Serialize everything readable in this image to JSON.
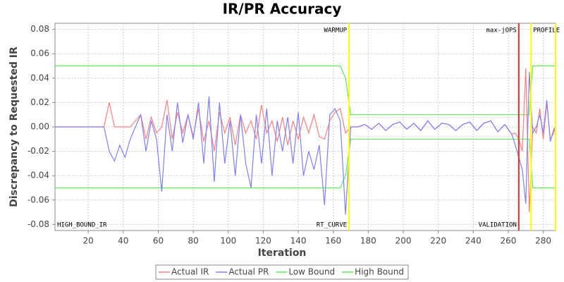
{
  "chart_data": {
    "type": "line",
    "title": "IR/PR Accuracy",
    "x_label": "Iteration",
    "y_label": "Discrepancy to Requested IR",
    "x": [
      1,
      29,
      32,
      35,
      38,
      41,
      44,
      47,
      50,
      53,
      56,
      59,
      62,
      65,
      68,
      71,
      74,
      77,
      80,
      83,
      86,
      89,
      92,
      95,
      98,
      101,
      104,
      107,
      110,
      113,
      116,
      119,
      122,
      125,
      128,
      131,
      134,
      137,
      140,
      143,
      146,
      149,
      152,
      155,
      158,
      161,
      164,
      167,
      170,
      174,
      178,
      182,
      186,
      190,
      194,
      198,
      202,
      206,
      210,
      214,
      218,
      222,
      226,
      230,
      234,
      238,
      242,
      246,
      250,
      254,
      258,
      262,
      264,
      266,
      268,
      270,
      272,
      274,
      276,
      278,
      280,
      282,
      284,
      286,
      287
    ],
    "series": [
      {
        "name": "Actual IR",
        "color": "#ff7f7f",
        "values": [
          0,
          0,
          0.02,
          0,
          0,
          0,
          0,
          0.005,
          0.01,
          -0.01,
          0.008,
          -0.005,
          0,
          0.022,
          -0.01,
          0.012,
          -0.005,
          0.01,
          -0.008,
          0.015,
          -0.012,
          0.005,
          -0.02,
          0.012,
          -0.005,
          0.008,
          -0.015,
          0.01,
          -0.005,
          0.005,
          -0.01,
          0.018,
          -0.005,
          0.005,
          -0.012,
          0.008,
          -0.015,
          0.005,
          -0.01,
          0.008,
          -0.005,
          0.01,
          -0.008,
          -0.01,
          0.005,
          0.012,
          0.015,
          -0.005,
          0,
          0,
          0.002,
          -0.002,
          0.003,
          -0.003,
          0.002,
          0.004,
          -0.002,
          0.003,
          -0.003,
          0.005,
          -0.002,
          0.003,
          0.002,
          -0.003,
          0.002,
          0.004,
          -0.003,
          0.003,
          0.005,
          -0.004,
          0.002,
          -0.006,
          -0.005,
          -0.01,
          -0.02,
          0.048,
          -0.07,
          0,
          -0.005,
          0.015,
          -0.01,
          0.02,
          -0.01,
          -0.005,
          0
        ]
      },
      {
        "name": "Actual PR",
        "color": "#7f7fff",
        "values": [
          0,
          0,
          -0.02,
          -0.028,
          -0.015,
          -0.025,
          -0.01,
          0,
          0.01,
          -0.02,
          0.005,
          -0.01,
          -0.053,
          0.01,
          -0.02,
          0.02,
          -0.013,
          0.01,
          -0.01,
          0.02,
          -0.03,
          0.025,
          -0.045,
          0.02,
          -0.03,
          0.005,
          -0.04,
          0.01,
          -0.03,
          -0.05,
          0.01,
          -0.03,
          0.015,
          -0.04,
          0.005,
          -0.02,
          0.008,
          -0.03,
          0.012,
          -0.04,
          -0.02,
          -0.035,
          -0.015,
          -0.064,
          0.01,
          0.015,
          0.005,
          -0.072,
          0,
          0,
          0.002,
          -0.002,
          0.003,
          -0.003,
          0.002,
          0.004,
          -0.002,
          0.003,
          -0.003,
          0.005,
          -0.002,
          0.003,
          0.002,
          -0.003,
          0.002,
          0.004,
          -0.003,
          0.003,
          0.005,
          -0.004,
          0.002,
          -0.006,
          -0.015,
          -0.025,
          -0.035,
          -0.063,
          0.045,
          -0.005,
          0,
          0.01,
          -0.005,
          0.022,
          -0.012,
          -0.002,
          0
        ]
      },
      {
        "name": "Low Bound",
        "color": "#5fe85f",
        "values": [
          -0.05,
          -0.05,
          -0.05,
          -0.05,
          -0.05,
          -0.05,
          -0.05,
          -0.05,
          -0.05,
          -0.05,
          -0.05,
          -0.05,
          -0.05,
          -0.05,
          -0.05,
          -0.05,
          -0.05,
          -0.05,
          -0.05,
          -0.05,
          -0.05,
          -0.05,
          -0.05,
          -0.05,
          -0.05,
          -0.05,
          -0.05,
          -0.05,
          -0.05,
          -0.05,
          -0.05,
          -0.05,
          -0.05,
          -0.05,
          -0.05,
          -0.05,
          -0.05,
          -0.05,
          -0.05,
          -0.05,
          -0.05,
          -0.05,
          -0.05,
          -0.05,
          -0.05,
          -0.05,
          -0.05,
          -0.04,
          -0.01,
          -0.01,
          -0.01,
          -0.01,
          -0.01,
          -0.01,
          -0.01,
          -0.01,
          -0.01,
          -0.01,
          -0.01,
          -0.01,
          -0.01,
          -0.01,
          -0.01,
          -0.01,
          -0.01,
          -0.01,
          -0.01,
          -0.01,
          -0.01,
          -0.01,
          -0.01,
          -0.01,
          -0.01,
          -0.01,
          -0.01,
          -0.01,
          -0.01,
          -0.05,
          -0.05,
          -0.05,
          -0.05,
          -0.05,
          -0.05,
          -0.05,
          -0.05
        ]
      },
      {
        "name": "High Bound",
        "color": "#5fe85f",
        "values": [
          0.05,
          0.05,
          0.05,
          0.05,
          0.05,
          0.05,
          0.05,
          0.05,
          0.05,
          0.05,
          0.05,
          0.05,
          0.05,
          0.05,
          0.05,
          0.05,
          0.05,
          0.05,
          0.05,
          0.05,
          0.05,
          0.05,
          0.05,
          0.05,
          0.05,
          0.05,
          0.05,
          0.05,
          0.05,
          0.05,
          0.05,
          0.05,
          0.05,
          0.05,
          0.05,
          0.05,
          0.05,
          0.05,
          0.05,
          0.05,
          0.05,
          0.05,
          0.05,
          0.05,
          0.05,
          0.05,
          0.05,
          0.04,
          0.01,
          0.01,
          0.01,
          0.01,
          0.01,
          0.01,
          0.01,
          0.01,
          0.01,
          0.01,
          0.01,
          0.01,
          0.01,
          0.01,
          0.01,
          0.01,
          0.01,
          0.01,
          0.01,
          0.01,
          0.01,
          0.01,
          0.01,
          0.01,
          0.01,
          0.01,
          0.01,
          0.01,
          0.01,
          0.05,
          0.05,
          0.05,
          0.05,
          0.05,
          0.05,
          0.05,
          0.05
        ]
      }
    ],
    "xlim": [
      1,
      287
    ],
    "ylim": [
      -0.085,
      0.085
    ],
    "xticks": [
      20,
      40,
      60,
      80,
      100,
      120,
      140,
      160,
      180,
      200,
      220,
      240,
      260,
      280
    ],
    "yticks": [
      -0.08,
      -0.06,
      -0.04,
      -0.02,
      {
        "value": 0,
        "label": "0.00"
      },
      0.02,
      0.04,
      0.06,
      0.08
    ],
    "grid": true,
    "legend": "bottom",
    "markers": [
      {
        "x": 1,
        "bottom": "HIGH_BOUND_IR",
        "side": "right"
      },
      {
        "x": 169,
        "color": "#ffff00",
        "top": "WARMUP",
        "bottom": "RT_CURVE",
        "side": "left"
      },
      {
        "x": 266,
        "color": "#e03030",
        "top": "max-jOPS",
        "bottom": "VALIDATION",
        "side": "left"
      },
      {
        "x": 273,
        "color": "#ffff00",
        "top": "PROFILE",
        "side": "right"
      },
      {
        "x": 287,
        "color": "#ffff00"
      }
    ]
  }
}
